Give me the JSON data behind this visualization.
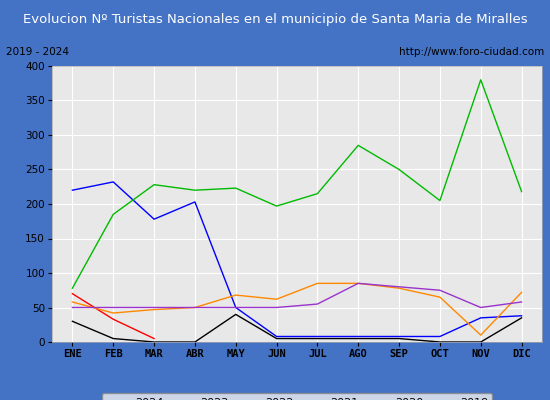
{
  "title": "Evolucion Nº Turistas Nacionales en el municipio de Santa Maria de Miralles",
  "subtitle_left": "2019 - 2024",
  "subtitle_right": "http://www.foro-ciudad.com",
  "months": [
    "ENE",
    "FEB",
    "MAR",
    "ABR",
    "MAY",
    "JUN",
    "JUL",
    "AGO",
    "SEP",
    "OCT",
    "NOV",
    "DIC"
  ],
  "series_2024": [
    70,
    33,
    5,
    null,
    null,
    null,
    null,
    null,
    null,
    null,
    null,
    null
  ],
  "series_2023": [
    30,
    5,
    0,
    0,
    40,
    5,
    5,
    5,
    5,
    0,
    0,
    35
  ],
  "series_2022": [
    220,
    232,
    178,
    203,
    50,
    8,
    8,
    8,
    8,
    8,
    35,
    38
  ],
  "series_2021": [
    78,
    185,
    228,
    220,
    223,
    197,
    215,
    285,
    250,
    205,
    380,
    218
  ],
  "series_2020": [
    58,
    42,
    47,
    50,
    68,
    62,
    85,
    85,
    78,
    65,
    10,
    72
  ],
  "series_2019": [
    50,
    50,
    50,
    50,
    50,
    50,
    55,
    85,
    80,
    75,
    50,
    58
  ],
  "color_2024": "#ff0000",
  "color_2023": "#000000",
  "color_2022": "#0000ff",
  "color_2021": "#00bb00",
  "color_2020": "#ff8800",
  "color_2019": "#9933cc",
  "ylim": [
    0,
    400
  ],
  "yticks": [
    0,
    50,
    100,
    150,
    200,
    250,
    300,
    350,
    400
  ],
  "title_bg": "#4472c4",
  "title_fg": "#ffffff",
  "subtitle_bg": "#d8d8d8",
  "plot_bg": "#e0e0e0",
  "chart_bg": "#e8e8e8",
  "grid_color": "#ffffff",
  "border_color": "#4472c4",
  "title_fontsize": 9.5,
  "tick_fontsize": 7.5,
  "legend_fontsize": 8
}
